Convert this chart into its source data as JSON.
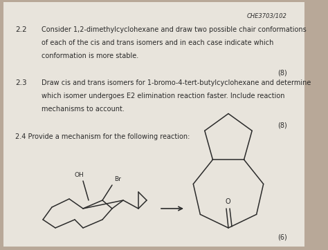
{
  "bg_color": "#b8a898",
  "paper_color": "#e8e4dc",
  "header": "CHE3703/102",
  "q22_num": "2.2",
  "q22_text_line1": "Consider 1,2-dimethylcyclohexane and draw two possible chair conformations",
  "q22_text_line2": "of each of the cis and trans isomers and in each case indicate which",
  "q22_text_line3": "conformation is more stable.",
  "q22_marks": "(8)",
  "q23_num": "2.3",
  "q23_text_line1": "Draw cis and trans isomers for 1-bromo-4-tert-butylcyclohexane and determine",
  "q23_text_line2": "which isomer undergoes E2 elimination reaction faster. Include reaction",
  "q23_text_line3": "mechanisms to account.",
  "q23_marks": "(8)",
  "q24_text": "2.4 Provide a mechanism for the following reaction:",
  "q24_marks": "(6)",
  "font_size_text": 7.0,
  "font_size_num": 7.5,
  "font_size_header": 6.0,
  "text_color": "#2a2a2a",
  "line_color": "#2a2a2a"
}
